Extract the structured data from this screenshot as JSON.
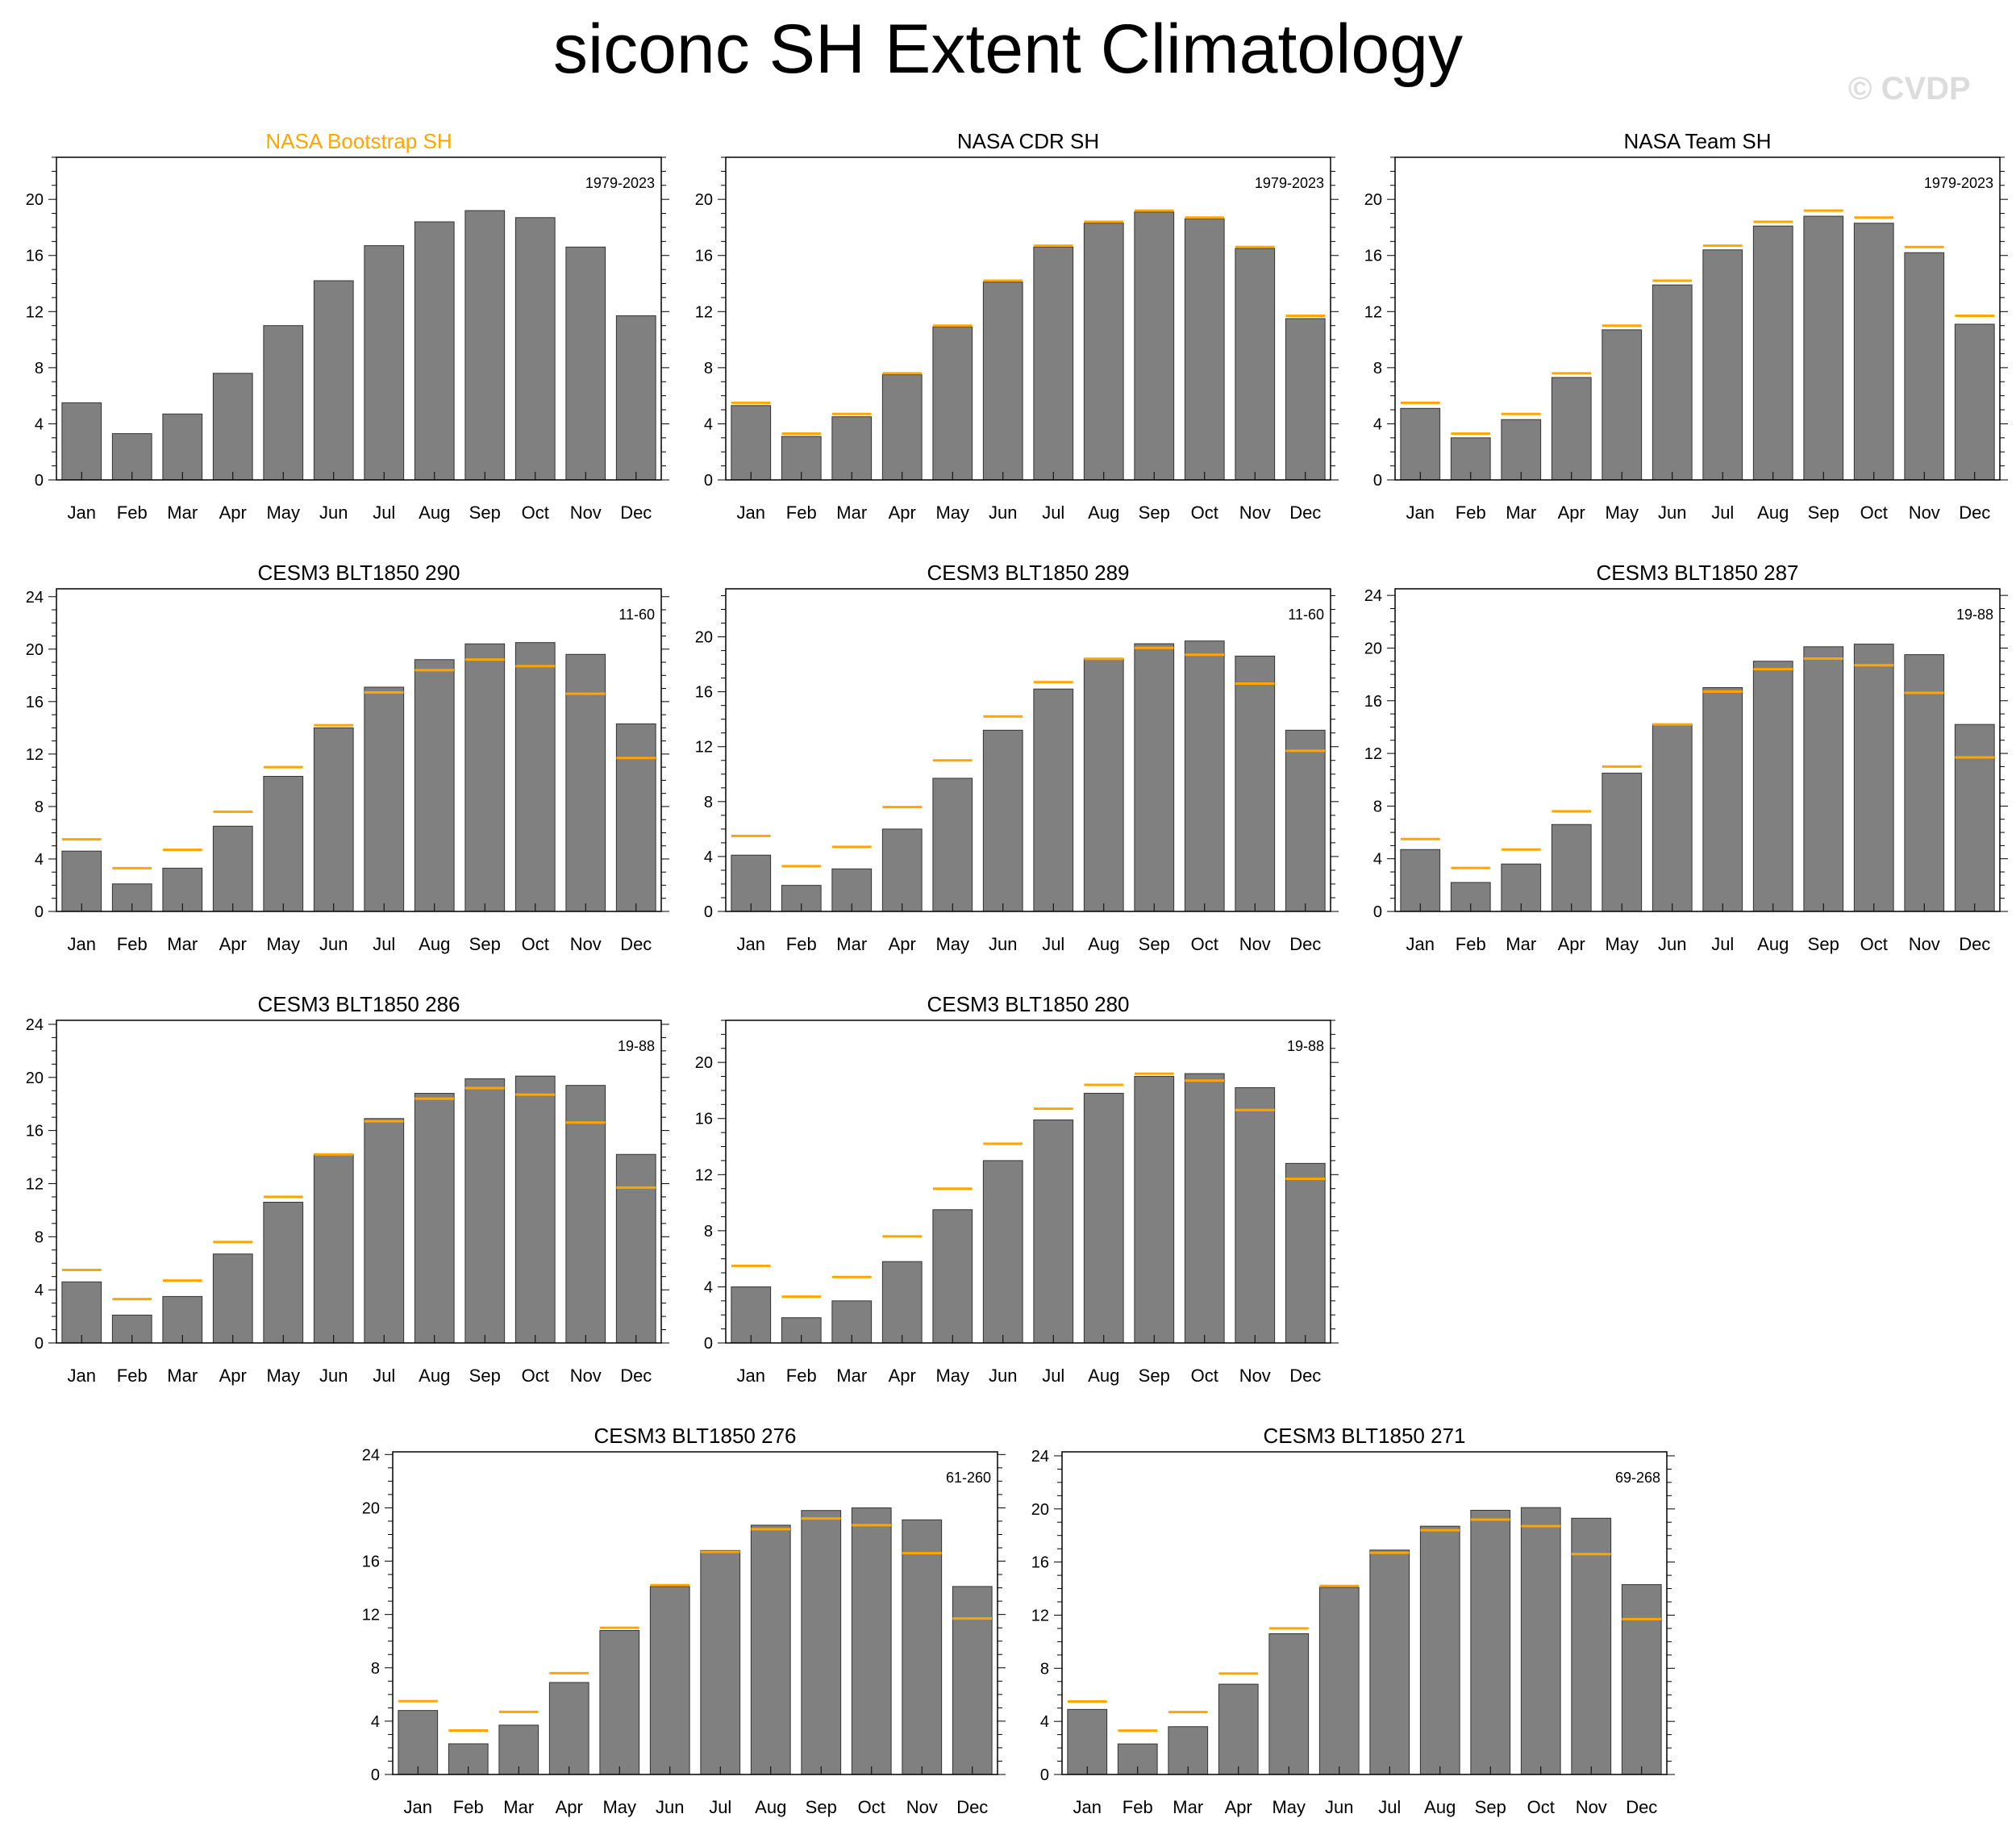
{
  "title": "siconc SH Extent Climatology",
  "watermark": "© CVDP",
  "colors": {
    "bar": "#808080",
    "bar_edge": "#333333",
    "obs_line": "#ffa500",
    "highlight_title": "#ffa500"
  },
  "chart_data": [
    {
      "type": "bar",
      "title": "NASA Bootstrap SH",
      "period": "1979-2023",
      "title_highlight": true,
      "ylim": [
        0,
        23
      ],
      "yticks": [
        0,
        4,
        8,
        12,
        16,
        20
      ],
      "categories": [
        "Jan",
        "Feb",
        "Mar",
        "Apr",
        "May",
        "Jun",
        "Jul",
        "Aug",
        "Sep",
        "Oct",
        "Nov",
        "Dec"
      ],
      "values": [
        5.5,
        3.3,
        4.7,
        7.6,
        11.0,
        14.2,
        16.7,
        18.4,
        19.2,
        18.7,
        16.6,
        11.7
      ],
      "reference": []
    },
    {
      "type": "bar",
      "title": "NASA CDR SH",
      "period": "1979-2023",
      "ylim": [
        0,
        23
      ],
      "yticks": [
        0,
        4,
        8,
        12,
        16,
        20
      ],
      "categories": [
        "Jan",
        "Feb",
        "Mar",
        "Apr",
        "May",
        "Jun",
        "Jul",
        "Aug",
        "Sep",
        "Oct",
        "Nov",
        "Dec"
      ],
      "values": [
        5.3,
        3.1,
        4.5,
        7.5,
        10.9,
        14.1,
        16.6,
        18.3,
        19.1,
        18.6,
        16.5,
        11.5
      ],
      "reference": [
        5.5,
        3.3,
        4.7,
        7.6,
        11.0,
        14.2,
        16.7,
        18.4,
        19.2,
        18.7,
        16.6,
        11.7
      ]
    },
    {
      "type": "bar",
      "title": "NASA Team SH",
      "period": "1979-2023",
      "ylim": [
        0,
        23
      ],
      "yticks": [
        0,
        4,
        8,
        12,
        16,
        20
      ],
      "categories": [
        "Jan",
        "Feb",
        "Mar",
        "Apr",
        "May",
        "Jun",
        "Jul",
        "Aug",
        "Sep",
        "Oct",
        "Nov",
        "Dec"
      ],
      "values": [
        5.1,
        3.0,
        4.3,
        7.3,
        10.7,
        13.9,
        16.4,
        18.1,
        18.8,
        18.3,
        16.2,
        11.1
      ],
      "reference": [
        5.5,
        3.3,
        4.7,
        7.6,
        11.0,
        14.2,
        16.7,
        18.4,
        19.2,
        18.7,
        16.6,
        11.7
      ]
    },
    {
      "type": "bar",
      "title": "CESM3 BLT1850 290",
      "period": "11-60",
      "ylim": [
        0,
        24.6
      ],
      "yticks": [
        0,
        4,
        8,
        12,
        16,
        20,
        24
      ],
      "categories": [
        "Jan",
        "Feb",
        "Mar",
        "Apr",
        "May",
        "Jun",
        "Jul",
        "Aug",
        "Sep",
        "Oct",
        "Nov",
        "Dec"
      ],
      "values": [
        4.6,
        2.1,
        3.3,
        6.5,
        10.3,
        14.0,
        17.1,
        19.2,
        20.4,
        20.5,
        19.6,
        14.3
      ],
      "reference": [
        5.5,
        3.3,
        4.7,
        7.6,
        11.0,
        14.2,
        16.7,
        18.4,
        19.2,
        18.7,
        16.6,
        11.7
      ]
    },
    {
      "type": "bar",
      "title": "CESM3 BLT1850 289",
      "period": "11-60",
      "ylim": [
        0,
        23.5
      ],
      "yticks": [
        0,
        4,
        8,
        12,
        16,
        20
      ],
      "categories": [
        "Jan",
        "Feb",
        "Mar",
        "Apr",
        "May",
        "Jun",
        "Jul",
        "Aug",
        "Sep",
        "Oct",
        "Nov",
        "Dec"
      ],
      "values": [
        4.1,
        1.9,
        3.1,
        6.0,
        9.7,
        13.2,
        16.2,
        18.4,
        19.5,
        19.7,
        18.6,
        13.2
      ],
      "reference": [
        5.5,
        3.3,
        4.7,
        7.6,
        11.0,
        14.2,
        16.7,
        18.4,
        19.2,
        18.7,
        16.6,
        11.7
      ]
    },
    {
      "type": "bar",
      "title": "CESM3 BLT1850 287",
      "period": "19-88",
      "ylim": [
        0,
        24.5
      ],
      "yticks": [
        0,
        4,
        8,
        12,
        16,
        20,
        24
      ],
      "categories": [
        "Jan",
        "Feb",
        "Mar",
        "Apr",
        "May",
        "Jun",
        "Jul",
        "Aug",
        "Sep",
        "Oct",
        "Nov",
        "Dec"
      ],
      "values": [
        4.7,
        2.2,
        3.6,
        6.6,
        10.5,
        14.2,
        17.0,
        19.0,
        20.1,
        20.3,
        19.5,
        14.2
      ],
      "reference": [
        5.5,
        3.3,
        4.7,
        7.6,
        11.0,
        14.2,
        16.7,
        18.4,
        19.2,
        18.7,
        16.6,
        11.7
      ]
    },
    {
      "type": "bar",
      "title": "CESM3 BLT1850 286",
      "period": "19-88",
      "ylim": [
        0,
        24.3
      ],
      "yticks": [
        0,
        4,
        8,
        12,
        16,
        20,
        24
      ],
      "categories": [
        "Jan",
        "Feb",
        "Mar",
        "Apr",
        "May",
        "Jun",
        "Jul",
        "Aug",
        "Sep",
        "Oct",
        "Nov",
        "Dec"
      ],
      "values": [
        4.6,
        2.1,
        3.5,
        6.7,
        10.6,
        14.2,
        16.9,
        18.8,
        19.9,
        20.1,
        19.4,
        14.2
      ],
      "reference": [
        5.5,
        3.3,
        4.7,
        7.6,
        11.0,
        14.2,
        16.7,
        18.4,
        19.2,
        18.7,
        16.6,
        11.7
      ]
    },
    {
      "type": "bar",
      "title": "CESM3 BLT1850 280",
      "period": "19-88",
      "ylim": [
        0,
        23
      ],
      "yticks": [
        0,
        4,
        8,
        12,
        16,
        20
      ],
      "categories": [
        "Jan",
        "Feb",
        "Mar",
        "Apr",
        "May",
        "Jun",
        "Jul",
        "Aug",
        "Sep",
        "Oct",
        "Nov",
        "Dec"
      ],
      "values": [
        4.0,
        1.8,
        3.0,
        5.8,
        9.5,
        13.0,
        15.9,
        17.8,
        19.0,
        19.2,
        18.2,
        12.8
      ],
      "reference": [
        5.5,
        3.3,
        4.7,
        7.6,
        11.0,
        14.2,
        16.7,
        18.4,
        19.2,
        18.7,
        16.6,
        11.7
      ]
    },
    {
      "type": "bar",
      "title": "CESM3 BLT1850 276",
      "period": "61-260",
      "ylim": [
        0,
        24.2
      ],
      "yticks": [
        0,
        4,
        8,
        12,
        16,
        20,
        24
      ],
      "categories": [
        "Jan",
        "Feb",
        "Mar",
        "Apr",
        "May",
        "Jun",
        "Jul",
        "Aug",
        "Sep",
        "Oct",
        "Nov",
        "Dec"
      ],
      "values": [
        4.8,
        2.3,
        3.7,
        6.9,
        10.8,
        14.1,
        16.8,
        18.7,
        19.8,
        20.0,
        19.1,
        14.1
      ],
      "reference": [
        5.5,
        3.3,
        4.7,
        7.6,
        11.0,
        14.2,
        16.7,
        18.4,
        19.2,
        18.7,
        16.6,
        11.7
      ]
    },
    {
      "type": "bar",
      "title": "CESM3 BLT1850 271",
      "period": "69-268",
      "ylim": [
        0,
        24.3
      ],
      "yticks": [
        0,
        4,
        8,
        12,
        16,
        20,
        24
      ],
      "categories": [
        "Jan",
        "Feb",
        "Mar",
        "Apr",
        "May",
        "Jun",
        "Jul",
        "Aug",
        "Sep",
        "Oct",
        "Nov",
        "Dec"
      ],
      "values": [
        4.9,
        2.3,
        3.6,
        6.8,
        10.6,
        14.1,
        16.9,
        18.7,
        19.9,
        20.1,
        19.3,
        14.3
      ],
      "reference": [
        5.5,
        3.3,
        4.7,
        7.6,
        11.0,
        14.2,
        16.7,
        18.4,
        19.2,
        18.7,
        16.6,
        11.7
      ]
    }
  ]
}
